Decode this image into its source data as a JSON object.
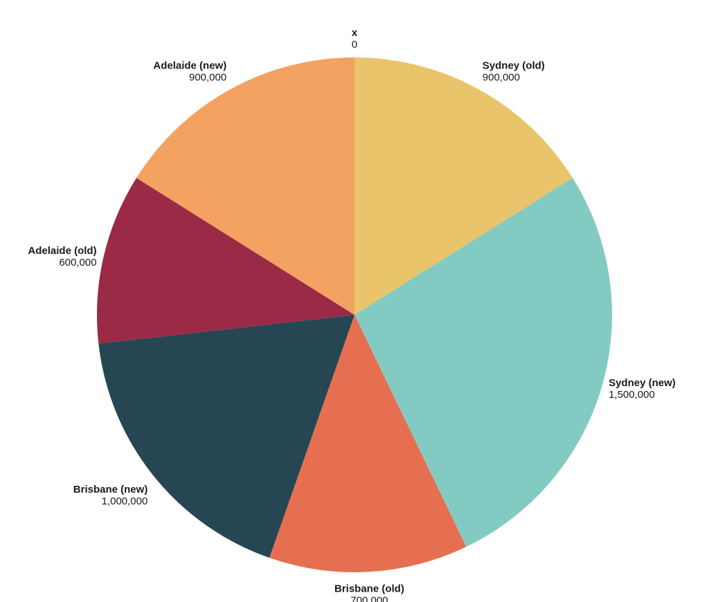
{
  "chart_data": {
    "type": "pie",
    "title": "",
    "categories": [
      "x",
      "Sydney (old)",
      "Sydney (new)",
      "Brisbane (old)",
      "Brisbane (new)",
      "Adelaide (old)",
      "Adelaide (new)"
    ],
    "values": [
      0,
      900000,
      1500000,
      700000,
      1000000,
      600000,
      900000
    ],
    "value_labels": [
      "0",
      "900,000",
      "1,500,000",
      "700,000",
      "1,000,000",
      "600,000",
      "900,000"
    ],
    "colors": [
      "#e9c46a",
      "#e9c46a",
      "#83cbc2",
      "#e76f51",
      "#264653",
      "#9b2a47",
      "#f3a261"
    ],
    "start_angle_deg": 0,
    "direction": "clockwise",
    "legend": "none"
  }
}
